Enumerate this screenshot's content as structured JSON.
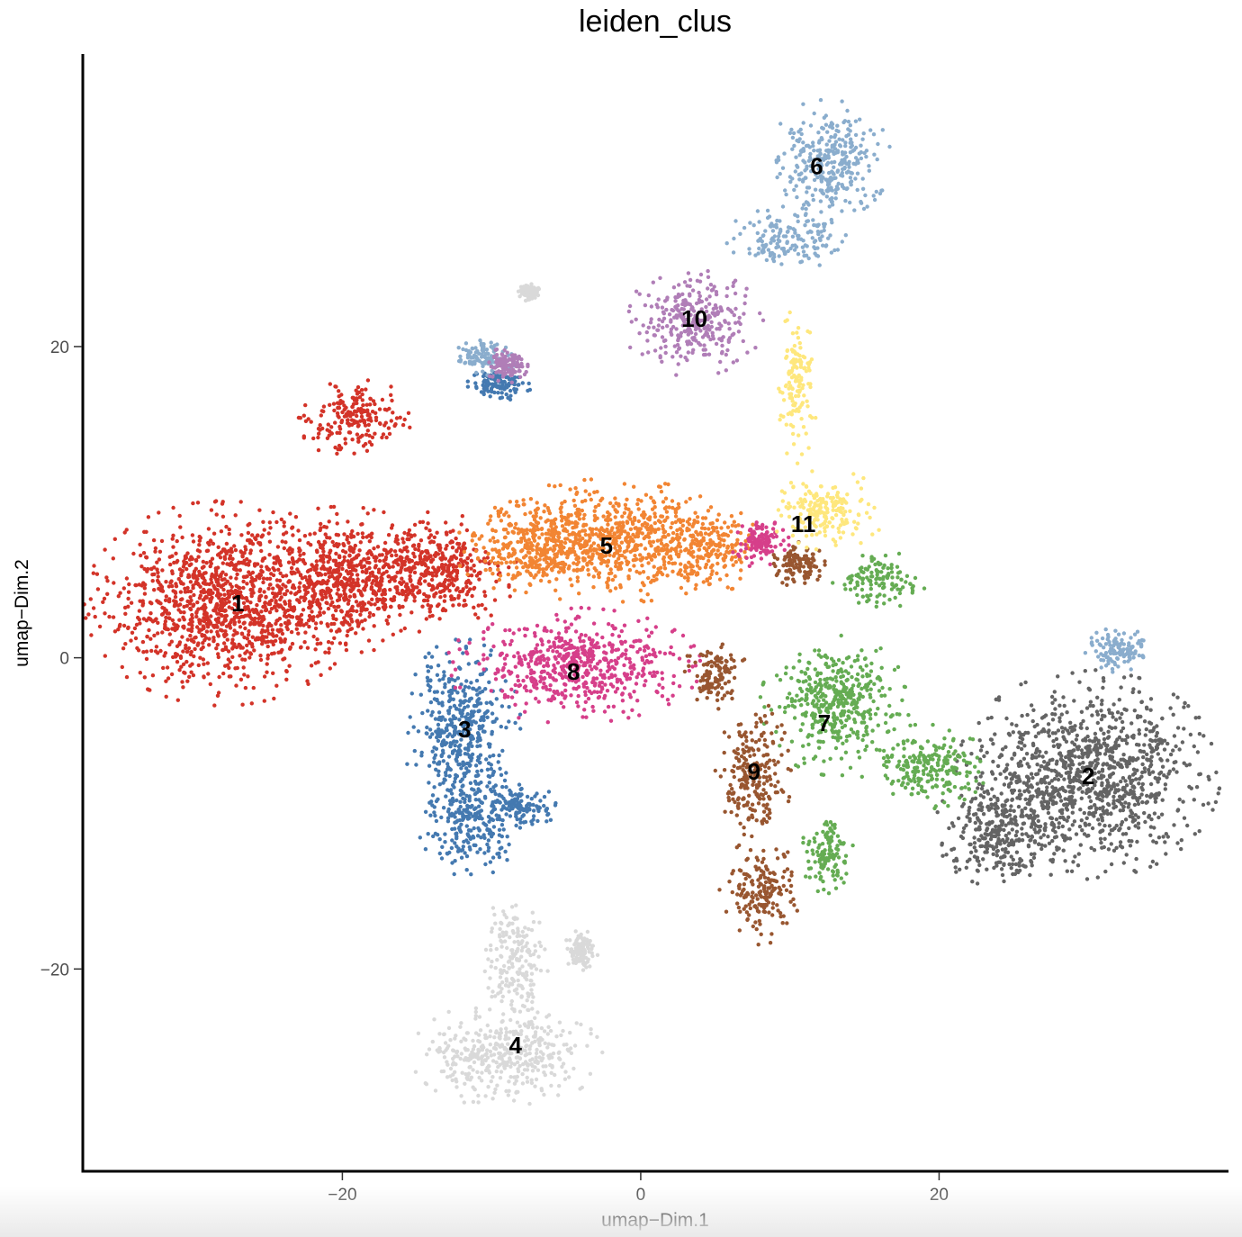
{
  "chart_data": {
    "type": "scatter",
    "title": "leiden_clus",
    "xlabel": "umap−Dim.1",
    "ylabel": "umap−Dim.2",
    "xlim": [
      -37.4,
      39.4
    ],
    "ylim": [
      -33.0,
      38.8
    ],
    "x_ticks": [
      -20,
      0,
      20
    ],
    "x_tick_labels": [
      "−20",
      "0",
      "20"
    ],
    "y_ticks": [
      -20,
      0,
      20
    ],
    "y_tick_labels": [
      "−20",
      "0",
      "20"
    ],
    "grid": false,
    "legend": "none",
    "clusters": [
      {
        "label": "1",
        "color": "#D33328",
        "center": [
          -27.0,
          3.5
        ],
        "blobs": [
          [
            -28.0,
            3.5,
            6.5,
            4.6
          ],
          [
            -20.0,
            5.0,
            5.0,
            3.3
          ],
          [
            -14.0,
            5.5,
            4.0,
            2.7
          ],
          [
            -19.0,
            15.3,
            2.8,
            1.8
          ]
        ]
      },
      {
        "label": "2",
        "color": "#646464",
        "center": [
          30.0,
          -7.6
        ],
        "blobs": [
          [
            30.0,
            -7.5,
            6.2,
            4.7
          ],
          [
            24.0,
            -11.0,
            3.0,
            2.6
          ]
        ]
      },
      {
        "label": "3",
        "color": "#4479B0",
        "center": [
          -11.8,
          -4.6
        ],
        "blobs": [
          [
            -12.0,
            -4.5,
            2.8,
            4.0
          ],
          [
            -11.5,
            -10.5,
            2.4,
            2.6
          ],
          [
            -8.0,
            -9.5,
            1.8,
            1.0
          ],
          [
            -9.5,
            17.5,
            1.5,
            0.8
          ]
        ]
      },
      {
        "label": "4",
        "color": "#D9D9D9",
        "center": [
          -8.4,
          -24.9
        ],
        "blobs": [
          [
            -9.0,
            -25.5,
            4.5,
            2.4
          ],
          [
            -8.5,
            -19.5,
            1.6,
            3.2
          ],
          [
            -4.0,
            -18.8,
            0.8,
            0.9
          ],
          [
            -7.5,
            23.5,
            0.5,
            0.4
          ]
        ]
      },
      {
        "label": "5",
        "color": "#F28533",
        "center": [
          -2.3,
          7.2
        ],
        "blobs": [
          [
            -2.0,
            7.5,
            6.5,
            2.8
          ],
          [
            -7.5,
            7.0,
            3.5,
            2.0
          ],
          [
            4.5,
            7.0,
            2.6,
            2.0
          ]
        ]
      },
      {
        "label": "6",
        "color": "#8AADCD",
        "center": [
          11.8,
          31.6
        ],
        "blobs": [
          [
            12.5,
            32.0,
            3.0,
            2.7
          ],
          [
            10.0,
            27.0,
            3.0,
            1.4
          ],
          [
            32.0,
            0.5,
            1.6,
            1.0
          ],
          [
            -10.5,
            19.3,
            1.6,
            0.8
          ]
        ]
      },
      {
        "label": "7",
        "color": "#65AC53",
        "center": [
          12.3,
          -4.2
        ],
        "blobs": [
          [
            13.0,
            -3.0,
            3.5,
            3.2
          ],
          [
            16.0,
            5.0,
            2.2,
            1.3
          ],
          [
            19.0,
            -7.0,
            3.0,
            1.9
          ],
          [
            12.5,
            -12.5,
            1.4,
            1.9
          ]
        ]
      },
      {
        "label": "8",
        "color": "#D63F8A",
        "center": [
          -4.5,
          -0.9
        ],
        "blobs": [
          [
            -4.5,
            -0.5,
            6.0,
            2.6
          ],
          [
            8.0,
            7.5,
            1.4,
            1.2
          ]
        ]
      },
      {
        "label": "9",
        "color": "#985630",
        "center": [
          7.6,
          -7.3
        ],
        "blobs": [
          [
            7.5,
            -7.5,
            1.8,
            3.4
          ],
          [
            8.0,
            -15.0,
            1.9,
            2.4
          ],
          [
            5.0,
            -1.0,
            1.5,
            1.6
          ],
          [
            10.5,
            6.0,
            1.3,
            1.0
          ]
        ]
      },
      {
        "label": "10",
        "color": "#B07EB7",
        "center": [
          3.6,
          21.8
        ],
        "blobs": [
          [
            3.5,
            21.5,
            3.3,
            2.4
          ],
          [
            -9.0,
            18.8,
            1.0,
            0.8
          ]
        ]
      },
      {
        "label": "11",
        "color": "#FEE77D",
        "center": [
          10.9,
          8.6
        ],
        "blobs": [
          [
            12.5,
            9.5,
            2.8,
            1.8
          ],
          [
            10.5,
            17.5,
            1.0,
            3.5
          ]
        ]
      }
    ]
  }
}
